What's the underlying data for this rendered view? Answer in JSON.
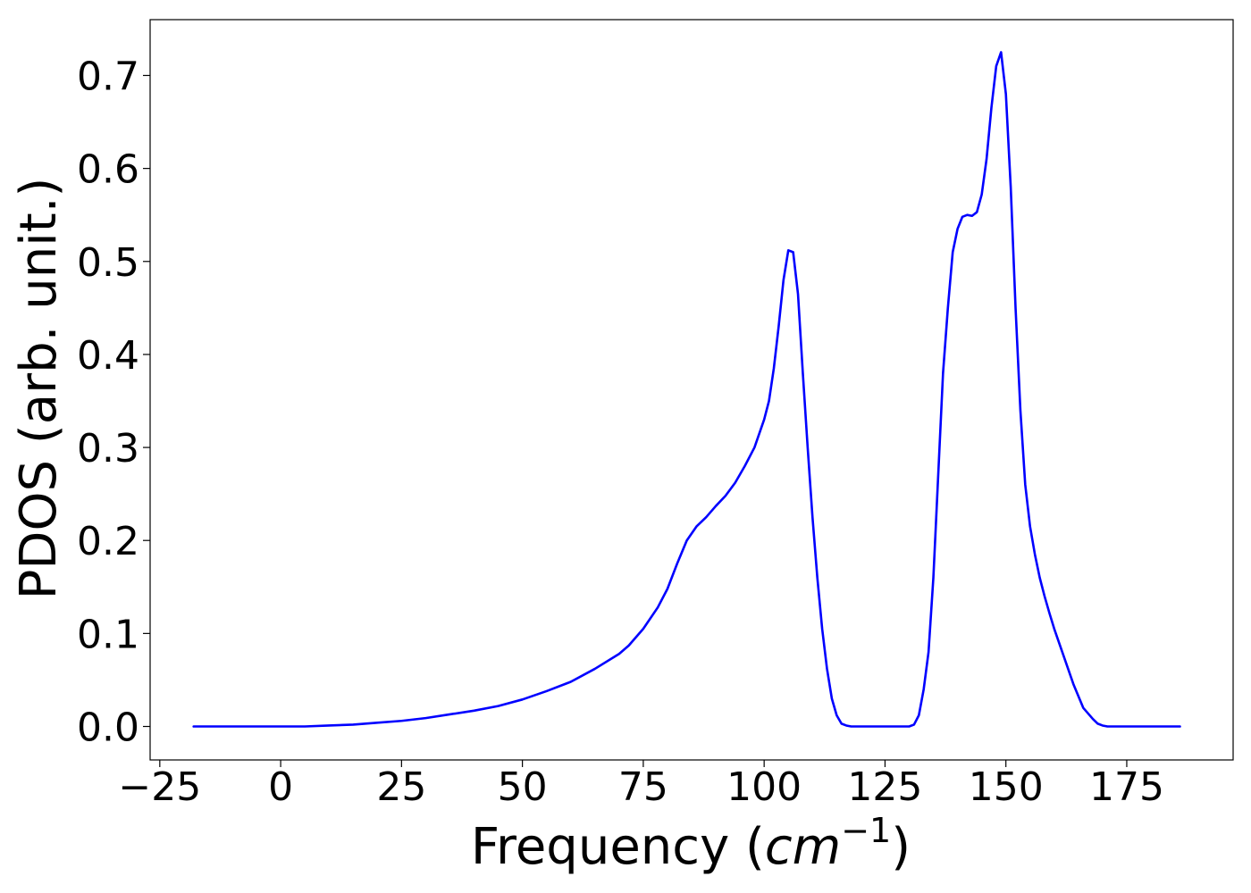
{
  "chart_data": {
    "type": "line",
    "title": "",
    "xlabel": "Frequency (",
    "xlabel_math": "cm",
    "xlabel_exponent": "−1",
    "xlabel_close": ")",
    "ylabel": "PDOS (arb. unit.)",
    "xlim": [
      -27,
      197
    ],
    "ylim": [
      -0.036,
      0.76
    ],
    "grid": false,
    "line_color": "#0000ff",
    "x_ticks": [
      -25,
      0,
      25,
      50,
      75,
      100,
      125,
      150,
      175
    ],
    "x_tick_labels": [
      "−25",
      "0",
      "25",
      "50",
      "75",
      "100",
      "125",
      "150",
      "175"
    ],
    "y_ticks": [
      0.0,
      0.1,
      0.2,
      0.3,
      0.4,
      0.5,
      0.6,
      0.7
    ],
    "y_tick_labels": [
      "0.0",
      "0.1",
      "0.2",
      "0.3",
      "0.4",
      "0.5",
      "0.6",
      "0.7"
    ],
    "series": [
      {
        "x": [
          -18,
          -10,
          0,
          5,
          10,
          15,
          20,
          25,
          30,
          35,
          40,
          45,
          50,
          55,
          60,
          65,
          70,
          72,
          75,
          78,
          80,
          82,
          84,
          86,
          88,
          90,
          92,
          94,
          96,
          98,
          100,
          101,
          102,
          103,
          104,
          105,
          106,
          107,
          108,
          109,
          110,
          111,
          112,
          113,
          114,
          115,
          116,
          117,
          118,
          120,
          125,
          130,
          131,
          132,
          133,
          134,
          135,
          136,
          137,
          138,
          139,
          140,
          141,
          142,
          143,
          144,
          145,
          146,
          147,
          148,
          149,
          150,
          151,
          152,
          153,
          154,
          155,
          156,
          157,
          158,
          159,
          160,
          162,
          164,
          166,
          168,
          169,
          170,
          171,
          172,
          174,
          180,
          186
        ],
        "y": [
          0.0,
          0.0,
          0.0,
          0.0,
          0.001,
          0.002,
          0.004,
          0.006,
          0.009,
          0.013,
          0.017,
          0.022,
          0.029,
          0.038,
          0.048,
          0.062,
          0.078,
          0.087,
          0.105,
          0.128,
          0.148,
          0.175,
          0.2,
          0.215,
          0.225,
          0.237,
          0.248,
          0.262,
          0.28,
          0.3,
          0.33,
          0.35,
          0.385,
          0.43,
          0.48,
          0.512,
          0.51,
          0.465,
          0.38,
          0.3,
          0.225,
          0.16,
          0.105,
          0.062,
          0.03,
          0.012,
          0.003,
          0.001,
          0.0,
          0.0,
          0.0,
          0.0,
          0.002,
          0.012,
          0.04,
          0.08,
          0.16,
          0.27,
          0.38,
          0.45,
          0.51,
          0.535,
          0.548,
          0.55,
          0.549,
          0.553,
          0.572,
          0.61,
          0.665,
          0.71,
          0.725,
          0.68,
          0.58,
          0.45,
          0.34,
          0.26,
          0.215,
          0.185,
          0.16,
          0.14,
          0.122,
          0.105,
          0.075,
          0.045,
          0.02,
          0.008,
          0.003,
          0.001,
          0.0,
          0.0,
          0.0,
          0.0,
          0.0
        ]
      }
    ]
  }
}
